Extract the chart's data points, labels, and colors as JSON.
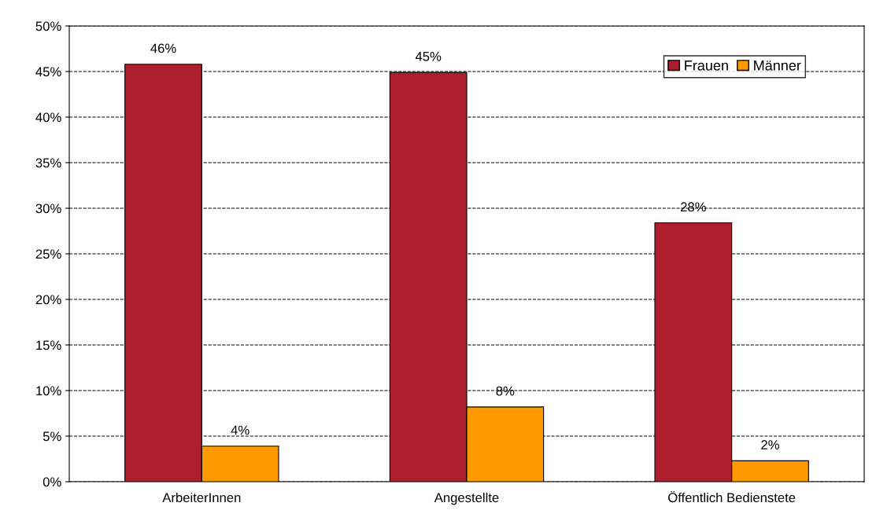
{
  "chart_data": {
    "type": "bar",
    "categories": [
      "ArbeiterInnen",
      "Angestellte",
      "Öffentlich Bedienstete"
    ],
    "series": [
      {
        "name": "Frauen",
        "color": "#ad1f2d",
        "values": [
          45.8,
          44.9,
          28.4
        ],
        "value_labels": [
          "46%",
          "45%",
          "28%"
        ]
      },
      {
        "name": "Männer",
        "color": "#ff9900",
        "values": [
          3.9,
          8.2,
          2.3
        ],
        "value_labels": [
          "4%",
          "8%",
          "2%"
        ]
      }
    ],
    "ylim": [
      0,
      50
    ],
    "yticks": [
      {
        "value": 0,
        "label": "0%"
      },
      {
        "value": 5,
        "label": "5%"
      },
      {
        "value": 10,
        "label": "10%"
      },
      {
        "value": 15,
        "label": "15%"
      },
      {
        "value": 20,
        "label": "20%"
      },
      {
        "value": 25,
        "label": "25%"
      },
      {
        "value": 30,
        "label": "30%"
      },
      {
        "value": 35,
        "label": "35%"
      },
      {
        "value": 40,
        "label": "40%"
      },
      {
        "value": 45,
        "label": "45%"
      },
      {
        "value": 50,
        "label": "50%"
      }
    ],
    "grid": "y",
    "line_style": "dashed",
    "legend": "top right"
  }
}
